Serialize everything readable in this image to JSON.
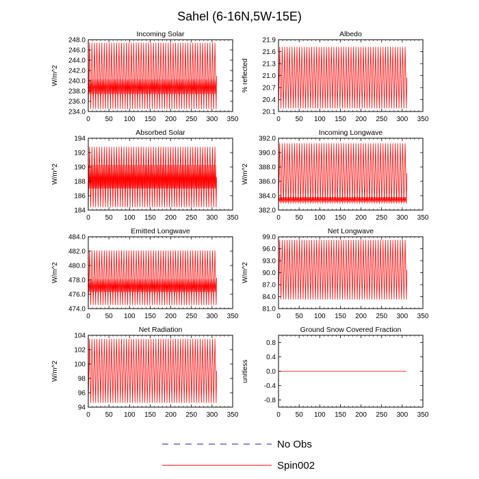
{
  "title": "Sahel (6-16N,5W-15E)",
  "legend": [
    {
      "label": "No Obs",
      "color": "#1a1a8c",
      "dashed": true
    },
    {
      "label": "Spin002",
      "color": "#ff0000",
      "dashed": false
    }
  ],
  "chart_data": [
    {
      "type": "line",
      "title": "Incoming Solar",
      "ylabel": "W/m^2",
      "xlim": [
        0,
        350
      ],
      "ylim": [
        234.0,
        248.0
      ],
      "xticks": [
        "0",
        "50",
        "100",
        "150",
        "200",
        "250",
        "300",
        "350"
      ],
      "yticks": [
        "234.0",
        "236.0",
        "238.0",
        "240.0",
        "242.0",
        "244.0",
        "246.0",
        "248.0"
      ],
      "series": [
        {
          "name": "Spin002",
          "x_end": 310,
          "cycles": 52,
          "low": 234.5,
          "high": 247.4,
          "band": [
            237.4,
            240.3
          ]
        }
      ]
    },
    {
      "type": "line",
      "title": "Albedo",
      "ylabel": "% reflected",
      "xlim": [
        0,
        350
      ],
      "ylim": [
        20.1,
        21.9
      ],
      "xticks": [
        "0",
        "50",
        "100",
        "150",
        "200",
        "250",
        "300",
        "350"
      ],
      "yticks": [
        "20.1",
        "20.4",
        "20.7",
        "21.0",
        "21.3",
        "21.6",
        "21.9"
      ],
      "series": [
        {
          "name": "Spin002",
          "x_end": 310,
          "cycles": 52,
          "low": 20.18,
          "high": 21.72,
          "band": null
        }
      ]
    },
    {
      "type": "line",
      "title": "Absorbed Solar",
      "ylabel": "W/m^2",
      "xlim": [
        0,
        350
      ],
      "ylim": [
        184,
        194
      ],
      "xticks": [
        "0",
        "50",
        "100",
        "150",
        "200",
        "250",
        "300",
        "350"
      ],
      "yticks": [
        "184",
        "186",
        "188",
        "190",
        "192",
        "194"
      ],
      "series": [
        {
          "name": "Spin002",
          "x_end": 310,
          "cycles": 52,
          "low": 184.4,
          "high": 192.8,
          "band": [
            187.0,
            190.3
          ]
        }
      ]
    },
    {
      "type": "line",
      "title": "Incoming Longwave",
      "ylabel": "W/m^2",
      "xlim": [
        0,
        350
      ],
      "ylim": [
        382.0,
        392.0
      ],
      "xticks": [
        "0",
        "50",
        "100",
        "150",
        "200",
        "250",
        "300",
        "350"
      ],
      "yticks": [
        "382.0",
        "384.0",
        "386.0",
        "388.0",
        "390.0",
        "392.0"
      ],
      "series": [
        {
          "name": "Spin002",
          "x_end": 310,
          "cycles": 52,
          "low": 382.9,
          "high": 391.3,
          "band": [
            383.1,
            383.8
          ]
        }
      ]
    },
    {
      "type": "line",
      "title": "Emitted Longwave",
      "ylabel": "W/m^2",
      "xlim": [
        0,
        350
      ],
      "ylim": [
        474.0,
        484.0
      ],
      "xticks": [
        "0",
        "50",
        "100",
        "150",
        "200",
        "250",
        "300",
        "350"
      ],
      "yticks": [
        "474.0",
        "476.0",
        "478.0",
        "480.0",
        "482.0",
        "484.0"
      ],
      "series": [
        {
          "name": "Spin002",
          "x_end": 310,
          "cycles": 52,
          "low": 474.5,
          "high": 482.1,
          "band": [
            476.3,
            478.1
          ]
        }
      ]
    },
    {
      "type": "line",
      "title": "Net Longwave",
      "ylabel": "W/m^2",
      "xlim": [
        0,
        350
      ],
      "ylim": [
        81.0,
        99.0
      ],
      "xticks": [
        "0",
        "50",
        "100",
        "150",
        "200",
        "250",
        "300",
        "350"
      ],
      "yticks": [
        "81.0",
        "84.0",
        "87.0",
        "90.0",
        "93.0",
        "96.0",
        "99.0"
      ],
      "series": [
        {
          "name": "Spin002",
          "x_end": 310,
          "cycles": 52,
          "low": 83.3,
          "high": 98.2,
          "band": null
        }
      ]
    },
    {
      "type": "line",
      "title": "Net Radiation",
      "ylabel": "W/m^2",
      "xlim": [
        0,
        350
      ],
      "ylim": [
        94,
        104
      ],
      "xticks": [
        "0",
        "50",
        "100",
        "150",
        "200",
        "250",
        "300",
        "350"
      ],
      "yticks": [
        "94",
        "96",
        "98",
        "100",
        "102",
        "104"
      ],
      "series": [
        {
          "name": "Spin002",
          "x_end": 310,
          "cycles": 52,
          "low": 94.6,
          "high": 103.5,
          "band": null
        }
      ]
    },
    {
      "type": "line",
      "title": "Ground Snow Covered Fraction",
      "ylabel": "unitless",
      "xlim": [
        0,
        350
      ],
      "ylim": [
        -1.0,
        1.0
      ],
      "xticks": [
        "0",
        "50",
        "100",
        "150",
        "200",
        "250",
        "300",
        "350"
      ],
      "yticks": [
        "-0.8",
        "-0.4",
        "0.0",
        "0.4",
        "0.8"
      ],
      "series": [
        {
          "name": "Spin002",
          "x_end": 310,
          "cycles": 0,
          "low": 0.0,
          "high": 0.0,
          "band": null
        }
      ]
    }
  ]
}
